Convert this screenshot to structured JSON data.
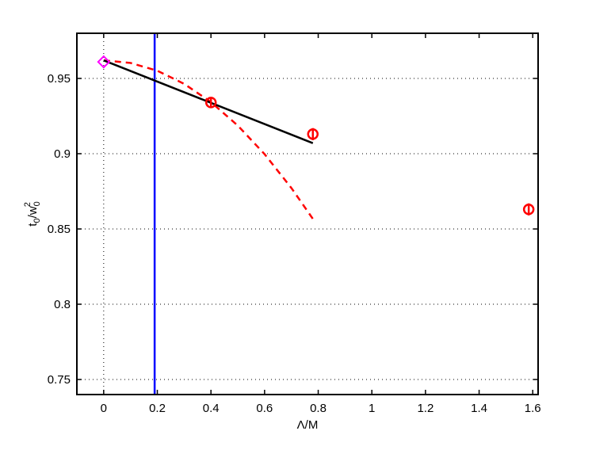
{
  "chart_data": {
    "type": "line",
    "xlabel": "Λ/M",
    "ylabel": [
      "t",
      "0",
      "/w",
      "0",
      "2"
    ],
    "xlim": [
      -0.1,
      1.62
    ],
    "ylim": [
      0.74,
      0.98
    ],
    "xticks": [
      0,
      0.2,
      0.4,
      0.6,
      0.8,
      1,
      1.2,
      1.4,
      1.6
    ],
    "yticks": [
      0.75,
      0.8,
      0.85,
      0.9,
      0.95
    ],
    "grid": "y",
    "reference_lines": [
      {
        "x": 0,
        "color": "#000000",
        "style": "dotted"
      },
      {
        "x": 0.19,
        "color": "#0000ff",
        "style": "solid"
      }
    ],
    "series": [
      {
        "color": "#ff0000",
        "style": "dashed",
        "marker": "none",
        "x": [
          0,
          0.1,
          0.2,
          0.3,
          0.4,
          0.5,
          0.6,
          0.7,
          0.78
        ],
        "values": [
          0.962,
          0.9603,
          0.9551,
          0.9464,
          0.9343,
          0.9187,
          0.8997,
          0.8772,
          0.8567
        ]
      },
      {
        "color": "#000000",
        "style": "solid",
        "marker": "none",
        "x": [
          0,
          0.78
        ],
        "values": [
          0.962,
          0.907
        ]
      },
      {
        "color": "#ff0000",
        "style": "none",
        "marker": "circle",
        "x": [
          0.4,
          0.78,
          1.585
        ],
        "values": [
          0.934,
          0.913,
          0.863
        ],
        "errors": [
          0.003,
          0.004,
          0.004
        ]
      },
      {
        "color": "#ff00ff",
        "style": "none",
        "marker": "diamond",
        "x": [
          0
        ],
        "values": [
          0.961
        ]
      }
    ]
  }
}
